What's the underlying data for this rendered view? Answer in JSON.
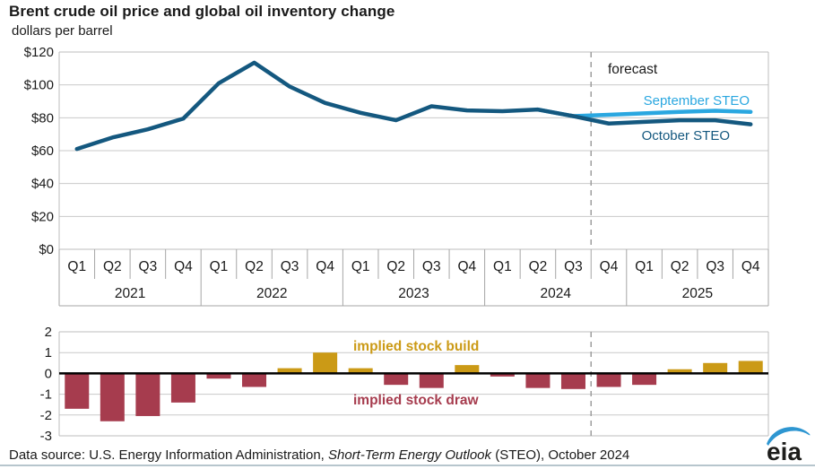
{
  "header": {
    "title": "Brent crude oil price and global oil inventory change",
    "subtitle": "dollars per barrel"
  },
  "footer": {
    "prefix": "Data source: U.S. Energy Information Administration, ",
    "italic": "Short-Term Energy Outlook",
    "suffix": " (STEO), October 2024",
    "logo_text": "eia"
  },
  "colors": {
    "line_dark": "#14587f",
    "line_light": "#2aa7e0",
    "bar_positive": "#cb9a16",
    "bar_negative": "#a63c4e",
    "forecast_dash": "#9e9e9e",
    "grid": "#c9c9c9",
    "frame": "#bdbdbd",
    "axis_box": "#a6a6a6",
    "zero_line": "#000000",
    "text": "#1a1a1a",
    "logo_arc": "#2e96d1",
    "bottom_rule": "#b7c6cd"
  },
  "chart_data": [
    {
      "type": "line",
      "title": "Brent crude oil price and global oil inventory change",
      "ylabel": "dollars per barrel",
      "ylim": [
        0,
        120
      ],
      "ytick_step": 20,
      "ytick_labels": [
        "$0",
        "$20",
        "$40",
        "$60",
        "$80",
        "$100",
        "$120"
      ],
      "quarter_labels": [
        "Q1",
        "Q2",
        "Q3",
        "Q4",
        "Q1",
        "Q2",
        "Q3",
        "Q4",
        "Q1",
        "Q2",
        "Q3",
        "Q4",
        "Q1",
        "Q2",
        "Q3",
        "Q4",
        "Q1",
        "Q2",
        "Q3",
        "Q4"
      ],
      "year_labels": [
        "2021",
        "2022",
        "2023",
        "2024",
        "2025"
      ],
      "grid": true,
      "forecast_boundary_after_index": 14,
      "annotations": {
        "forecast": "forecast",
        "september": "September STEO",
        "october": "October STEO"
      },
      "series": [
        {
          "name": "Brent history + October STEO",
          "color_key": "line_dark",
          "start_index": 0,
          "values": [
            61,
            68,
            73,
            79.5,
            101,
            113.5,
            99,
            89,
            83,
            78.5,
            87,
            84.5,
            84,
            85,
            81,
            76.5,
            77.5,
            78.5,
            78.5,
            76
          ]
        },
        {
          "name": "September STEO",
          "color_key": "line_light",
          "start_index": 13,
          "values": [
            85,
            81,
            81.8,
            82.7,
            83.6,
            84.3,
            83.6
          ]
        }
      ]
    },
    {
      "type": "bar",
      "title": "Global oil inventory change (implied stock build/draw)",
      "ylim": [
        -3,
        2
      ],
      "ytick_labels": [
        "2",
        "1",
        "0",
        "-1",
        "-2",
        "-3"
      ],
      "grid": true,
      "categories_shared_with_top_chart": true,
      "forecast_boundary_after_index": 14,
      "labels": {
        "build": "implied stock build",
        "draw": "implied stock draw"
      },
      "values": [
        -1.7,
        -2.3,
        -2.05,
        -1.4,
        -0.25,
        -0.65,
        0.25,
        1.0,
        0.25,
        -0.55,
        -0.7,
        0.4,
        -0.15,
        -0.7,
        -0.75,
        -0.65,
        -0.55,
        0.2,
        0.5,
        0.6
      ]
    }
  ]
}
